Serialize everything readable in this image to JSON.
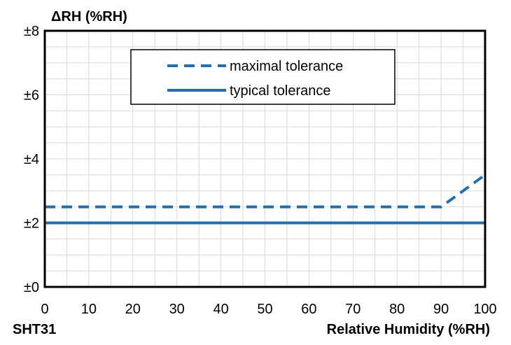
{
  "chart_data": {
    "type": "line",
    "ylabel": "ΔRH (%RH)",
    "xlabel": "Relative Humidity (%RH)",
    "corner_label": "SHT31",
    "xlim": [
      0,
      100
    ],
    "ylim": [
      0,
      8
    ],
    "x_ticks": [
      0,
      10,
      20,
      30,
      40,
      50,
      60,
      70,
      80,
      90,
      100
    ],
    "x_tick_labels": [
      "0",
      "10",
      "20",
      "30",
      "40",
      "50",
      "60",
      "70",
      "80",
      "90",
      "100"
    ],
    "y_ticks": [
      0,
      2,
      4,
      6,
      8
    ],
    "y_tick_labels": [
      "±0",
      "±2",
      "±4",
      "±6",
      "±8"
    ],
    "grid": true,
    "legend_position": "top-center",
    "series": [
      {
        "name": "maximal tolerance",
        "style": "dashed",
        "color": "#1f6fb8",
        "points": [
          [
            0,
            2.5
          ],
          [
            90,
            2.5
          ],
          [
            100,
            3.5
          ]
        ]
      },
      {
        "name": "typical tolerance",
        "style": "solid",
        "color": "#1f6fb8",
        "points": [
          [
            0,
            2
          ],
          [
            100,
            2
          ]
        ]
      }
    ]
  }
}
